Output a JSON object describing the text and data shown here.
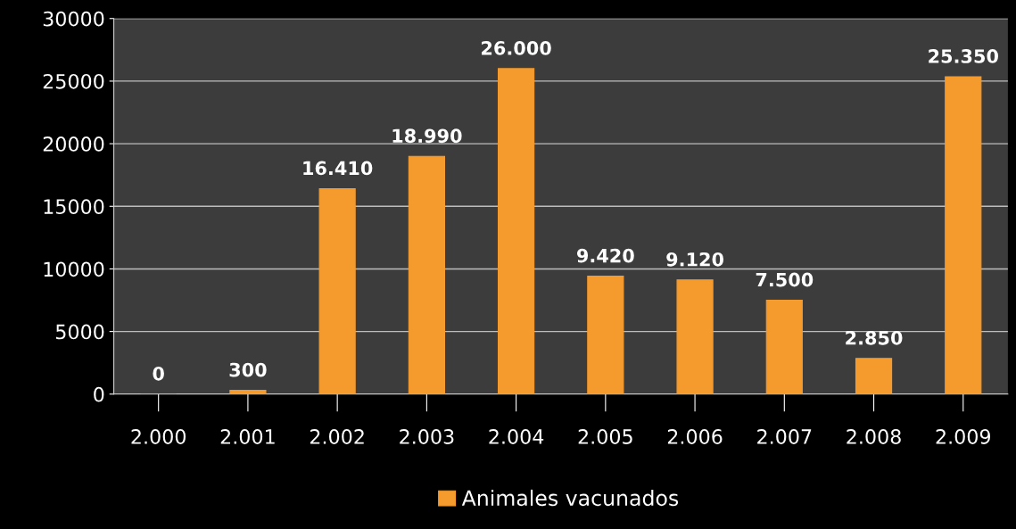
{
  "chart_data": {
    "type": "bar",
    "categories": [
      "2.000",
      "2.001",
      "2.002",
      "2.003",
      "2.004",
      "2.005",
      "2.006",
      "2.007",
      "2.008",
      "2.009"
    ],
    "series": [
      {
        "name": "Animales vacunados",
        "color": "#f59a2c",
        "values": [
          0,
          300,
          16410,
          18990,
          26000,
          9420,
          9120,
          7500,
          2850,
          25350
        ],
        "value_labels": [
          "0",
          "300",
          "16.410",
          "18.990",
          "26.000",
          "9.420",
          "9.120",
          "7.500",
          "2.850",
          "25.350"
        ]
      }
    ],
    "ylim": [
      0,
      30000
    ],
    "yticks": [
      0,
      5000,
      10000,
      15000,
      20000,
      25000,
      30000
    ],
    "grid": "y",
    "legend": "bottom"
  }
}
